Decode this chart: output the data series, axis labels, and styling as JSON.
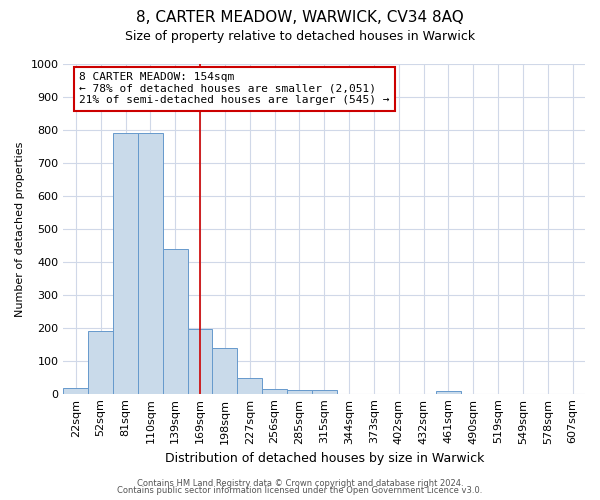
{
  "title": "8, CARTER MEADOW, WARWICK, CV34 8AQ",
  "subtitle": "Size of property relative to detached houses in Warwick",
  "xlabel": "Distribution of detached houses by size in Warwick",
  "ylabel": "Number of detached properties",
  "bar_labels": [
    "22sqm",
    "52sqm",
    "81sqm",
    "110sqm",
    "139sqm",
    "169sqm",
    "198sqm",
    "227sqm",
    "256sqm",
    "285sqm",
    "315sqm",
    "344sqm",
    "373sqm",
    "402sqm",
    "432sqm",
    "461sqm",
    "490sqm",
    "519sqm",
    "549sqm",
    "578sqm",
    "607sqm"
  ],
  "bar_values": [
    18,
    190,
    790,
    790,
    440,
    195,
    140,
    48,
    15,
    12,
    10,
    0,
    0,
    0,
    0,
    8,
    0,
    0,
    0,
    0,
    0
  ],
  "bar_color": "#c9daea",
  "bar_edge_color": "#6699cc",
  "vline_x": 5.0,
  "vline_color": "#cc0000",
  "annotation_box_color": "#cc0000",
  "property_label": "8 CARTER MEADOW: 154sqm",
  "annotation_line1": "← 78% of detached houses are smaller (2,051)",
  "annotation_line2": "21% of semi-detached houses are larger (545) →",
  "ylim": [
    0,
    1000
  ],
  "yticks": [
    0,
    100,
    200,
    300,
    400,
    500,
    600,
    700,
    800,
    900,
    1000
  ],
  "background_color": "#ffffff",
  "plot_bg_color": "#ffffff",
  "grid_color": "#d0d8e8",
  "footer_line1": "Contains HM Land Registry data © Crown copyright and database right 2024.",
  "footer_line2": "Contains public sector information licensed under the Open Government Licence v3.0.",
  "title_fontsize": 11,
  "subtitle_fontsize": 9,
  "ylabel_fontsize": 8,
  "xlabel_fontsize": 9,
  "tick_fontsize": 8,
  "footer_fontsize": 6
}
